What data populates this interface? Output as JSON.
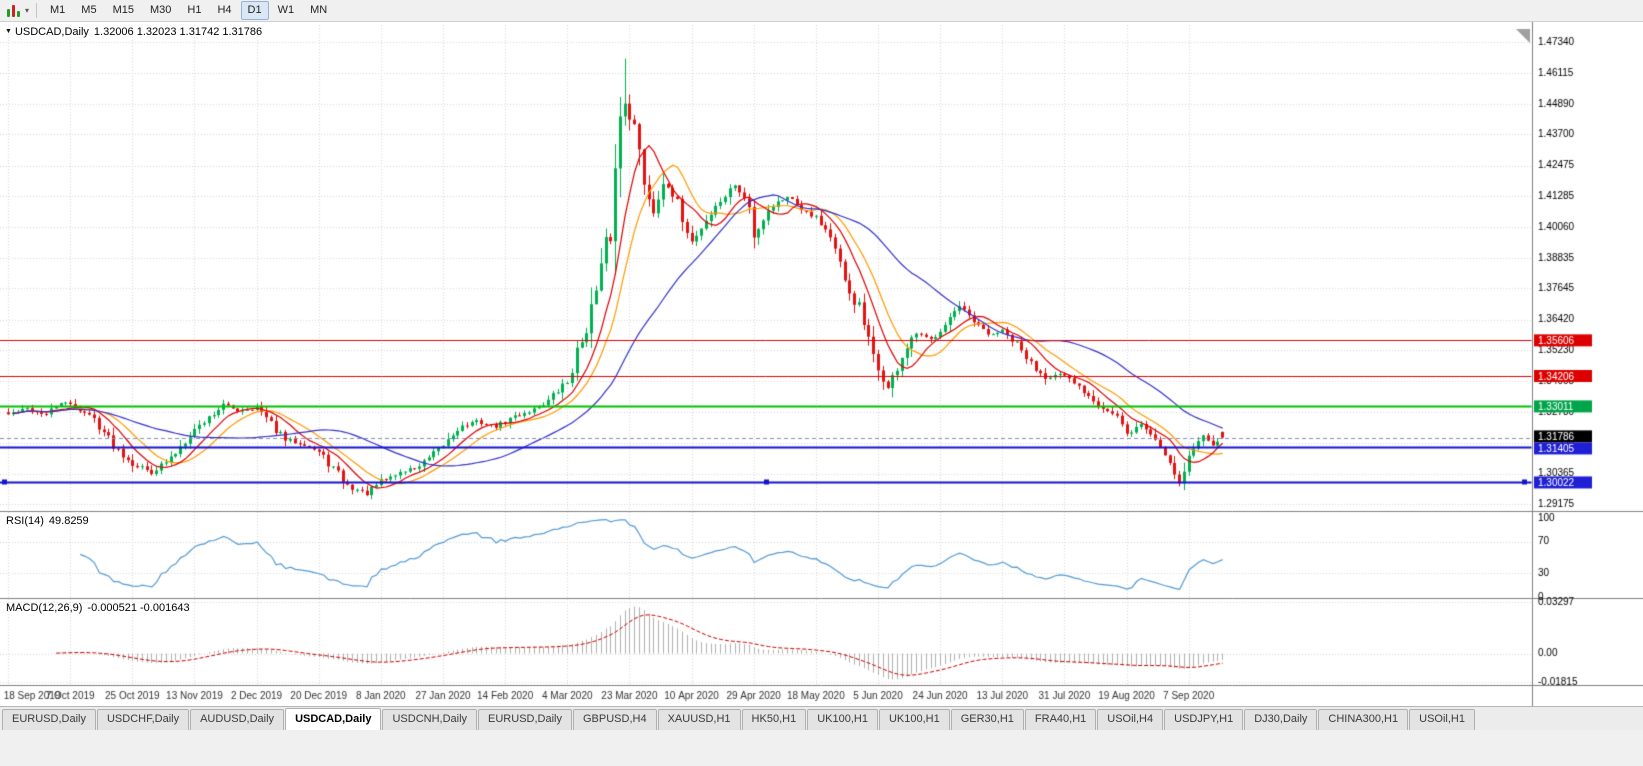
{
  "toolbar": {
    "timeframes": [
      {
        "label": "M1",
        "active": false
      },
      {
        "label": "M5",
        "active": false
      },
      {
        "label": "M15",
        "active": false
      },
      {
        "label": "M30",
        "active": false
      },
      {
        "label": "H1",
        "active": false
      },
      {
        "label": "H4",
        "active": false
      },
      {
        "label": "D1",
        "active": true
      },
      {
        "label": "W1",
        "active": false
      },
      {
        "label": "MN",
        "active": false
      }
    ]
  },
  "chart": {
    "title": "USDCAD,Daily",
    "ohlc_text": "1.32006 1.32023 1.31742 1.31786"
  },
  "indicators": {
    "rsi_name": "RSI(14)",
    "rsi_value": "49.8259",
    "macd_name": "MACD(12,26,9)",
    "macd_values": "-0.000521 -0.001643"
  },
  "tabs": [
    {
      "label": "EURUSD,Daily",
      "active": false
    },
    {
      "label": "USDCHF,Daily",
      "active": false
    },
    {
      "label": "AUDUSD,Daily",
      "active": false
    },
    {
      "label": "USDCAD,Daily",
      "active": true
    },
    {
      "label": "USDCNH,Daily",
      "active": false
    },
    {
      "label": "EURUSD,Daily",
      "active": false
    },
    {
      "label": "GBPUSD,H4",
      "active": false
    },
    {
      "label": "XAUUSD,H1",
      "active": false
    },
    {
      "label": "HK50,H1",
      "active": false
    },
    {
      "label": "UK100,H1",
      "active": false
    },
    {
      "label": "UK100,H1",
      "active": false
    },
    {
      "label": "GER30,H1",
      "active": false
    },
    {
      "label": "FRA40,H1",
      "active": false
    },
    {
      "label": "USOil,H4",
      "active": false
    },
    {
      "label": "USDJPY,H1",
      "active": false
    },
    {
      "label": "DJ30,Daily",
      "active": false
    },
    {
      "label": "CHINA300,H1",
      "active": false
    },
    {
      "label": "USOil,H1",
      "active": false
    }
  ],
  "chart_data": {
    "type": "candlestick",
    "symbol": "USDCAD",
    "period": "Daily",
    "ohlc_last": {
      "open": 1.32006,
      "high": 1.32023,
      "low": 1.31742,
      "close": 1.31786
    },
    "price_range": [
      1.289,
      1.48
    ],
    "peak": [
      129,
      1.4668
    ],
    "candle_count": 255,
    "candle_spacing": 4.78,
    "y_axis_ticks": [
      "1.47340",
      "1.46115",
      "1.44890",
      "1.43700",
      "1.42475",
      "1.41285",
      "1.40060",
      "1.38835",
      "1.37645",
      "1.36420",
      "1.35230",
      "1.34005",
      "1.32780",
      "1.31590",
      "1.30365",
      "1.29175"
    ],
    "x_axis": [
      {
        "index": 0,
        "label": "18 Sep 2019"
      },
      {
        "index": 13,
        "label": "7 Oct 2019"
      },
      {
        "index": 26,
        "label": "25 Oct 2019"
      },
      {
        "index": 39,
        "label": "13 Nov 2019"
      },
      {
        "index": 52,
        "label": "2 Dec 2019"
      },
      {
        "index": 65,
        "label": "20 Dec 2019"
      },
      {
        "index": 78,
        "label": "8 Jan 2020"
      },
      {
        "index": 91,
        "label": "27 Jan 2020"
      },
      {
        "index": 104,
        "label": "14 Feb 2020"
      },
      {
        "index": 117,
        "label": "4 Mar 2020"
      },
      {
        "index": 130,
        "label": "23 Mar 2020"
      },
      {
        "index": 143,
        "label": "10 Apr 2020"
      },
      {
        "index": 156,
        "label": "29 Apr 2020"
      },
      {
        "index": 169,
        "label": "18 May 2020"
      },
      {
        "index": 182,
        "label": "5 Jun 2020"
      },
      {
        "index": 195,
        "label": "24 Jun 2020"
      },
      {
        "index": 208,
        "label": "13 Jul 2020"
      },
      {
        "index": 221,
        "label": "31 Jul 2020"
      },
      {
        "index": 234,
        "label": "19 Aug 2020"
      },
      {
        "index": 247,
        "label": "7 Sep 2020"
      }
    ],
    "close_anchors": [
      [
        0,
        1.327
      ],
      [
        4,
        1.3292
      ],
      [
        8,
        1.3268
      ],
      [
        11,
        1.3318
      ],
      [
        14,
        1.33
      ],
      [
        18,
        1.3252
      ],
      [
        22,
        1.315
      ],
      [
        26,
        1.3078
      ],
      [
        30,
        1.3042
      ],
      [
        34,
        1.3095
      ],
      [
        38,
        1.3195
      ],
      [
        41,
        1.3242
      ],
      [
        45,
        1.3308
      ],
      [
        48,
        1.3285
      ],
      [
        52,
        1.3296
      ],
      [
        55,
        1.323
      ],
      [
        58,
        1.3168
      ],
      [
        62,
        1.3155
      ],
      [
        65,
        1.312
      ],
      [
        68,
        1.3058
      ],
      [
        71,
        1.2988
      ],
      [
        75,
        1.2958
      ],
      [
        78,
        1.3006
      ],
      [
        82,
        1.3042
      ],
      [
        86,
        1.3066
      ],
      [
        90,
        1.3126
      ],
      [
        94,
        1.3215
      ],
      [
        98,
        1.3242
      ],
      [
        102,
        1.3222
      ],
      [
        106,
        1.3262
      ],
      [
        110,
        1.329
      ],
      [
        113,
        1.3324
      ],
      [
        117,
        1.3398
      ],
      [
        120,
        1.3562
      ],
      [
        123,
        1.3745
      ],
      [
        126,
        1.3998
      ],
      [
        128,
        1.4442
      ],
      [
        129,
        1.4508
      ],
      [
        131,
        1.4392
      ],
      [
        133,
        1.4192
      ],
      [
        135,
        1.4062
      ],
      [
        137,
        1.4182
      ],
      [
        140,
        1.4092
      ],
      [
        143,
        1.3948
      ],
      [
        146,
        1.4032
      ],
      [
        149,
        1.4108
      ],
      [
        152,
        1.4172
      ],
      [
        155,
        1.4082
      ],
      [
        156,
        1.3962
      ],
      [
        159,
        1.4078
      ],
      [
        163,
        1.4128
      ],
      [
        166,
        1.4082
      ],
      [
        169,
        1.4048
      ],
      [
        172,
        1.3972
      ],
      [
        175,
        1.3778
      ],
      [
        178,
        1.3688
      ],
      [
        181,
        1.3482
      ],
      [
        184,
        1.3372
      ],
      [
        187,
        1.3497
      ],
      [
        190,
        1.3587
      ],
      [
        193,
        1.3562
      ],
      [
        196,
        1.3632
      ],
      [
        199,
        1.3692
      ],
      [
        202,
        1.3628
      ],
      [
        205,
        1.3582
      ],
      [
        208,
        1.3596
      ],
      [
        211,
        1.3542
      ],
      [
        214,
        1.3468
      ],
      [
        217,
        1.3418
      ],
      [
        220,
        1.3425
      ],
      [
        223,
        1.3392
      ],
      [
        226,
        1.3348
      ],
      [
        229,
        1.3297
      ],
      [
        232,
        1.3257
      ],
      [
        234,
        1.3188
      ],
      [
        237,
        1.3232
      ],
      [
        240,
        1.3172
      ],
      [
        243,
        1.3088
      ],
      [
        245,
        1.2998
      ],
      [
        247,
        1.3106
      ],
      [
        250,
        1.3188
      ],
      [
        252,
        1.3154
      ],
      [
        254,
        1.31786
      ]
    ],
    "colors": {
      "up": "#00b050",
      "down": "#e31212",
      "grid": "#d9d9d9",
      "axis_line": "#808080",
      "histogram": "#b0b0b0",
      "rsi_line": "#549bd5",
      "macd_signal": "#cc0000",
      "marker": "#a0a0a0"
    },
    "moving_averages": [
      {
        "period": 13,
        "color": "#ff9900"
      },
      {
        "period": 8,
        "color": "#dd0000"
      },
      {
        "period": 34,
        "color": "#3333cc"
      }
    ],
    "price_tags": [
      {
        "value": "1.35606",
        "price": 1.35606,
        "bg": "#dd0000",
        "fg": "#ffffff",
        "line_color": "#dd0000",
        "line_width": 1,
        "line_style": "solid",
        "handles": false
      },
      {
        "value": "1.34206",
        "price": 1.34206,
        "bg": "#dd0000",
        "fg": "#ffffff",
        "line_color": "#dd0000",
        "line_width": 1,
        "line_style": "solid",
        "handles": false
      },
      {
        "value": "1.33011",
        "price": 1.33011,
        "bg": "#00a44a",
        "fg": "#ffffff",
        "line_color": "#00c000",
        "line_width": 2,
        "line_style": "solid",
        "handles": false
      },
      {
        "value": "1.31786",
        "price": 1.31786,
        "bg": "#000000",
        "fg": "#ffffff",
        "line_color": "#8890b0",
        "line_width": 1,
        "line_style": "dash",
        "handles": false
      },
      {
        "value": "1.31405",
        "price": 1.31405,
        "bg": "#1f1fd6",
        "fg": "#ffffff",
        "line_color": "#1414cc",
        "line_width": 2,
        "line_style": "solid",
        "handles": false
      },
      {
        "value": "1.30022",
        "price": 1.30022,
        "bg": "#1f1fd6",
        "fg": "#ffffff",
        "line_color": "#1414cc",
        "line_width": 2,
        "line_style": "solid",
        "handles": true
      }
    ],
    "rsi": {
      "period": 14,
      "levels": [
        100,
        70,
        30,
        0
      ],
      "last_value": 49.8259
    },
    "macd": {
      "fast": 12,
      "slow": 26,
      "signal": 9,
      "range": [
        -0.0182,
        0.033
      ],
      "axis_labels": [
        "0.03297",
        "0.00",
        "-0.01815"
      ],
      "axis_values": [
        0.03297,
        0,
        -0.01815
      ]
    }
  }
}
